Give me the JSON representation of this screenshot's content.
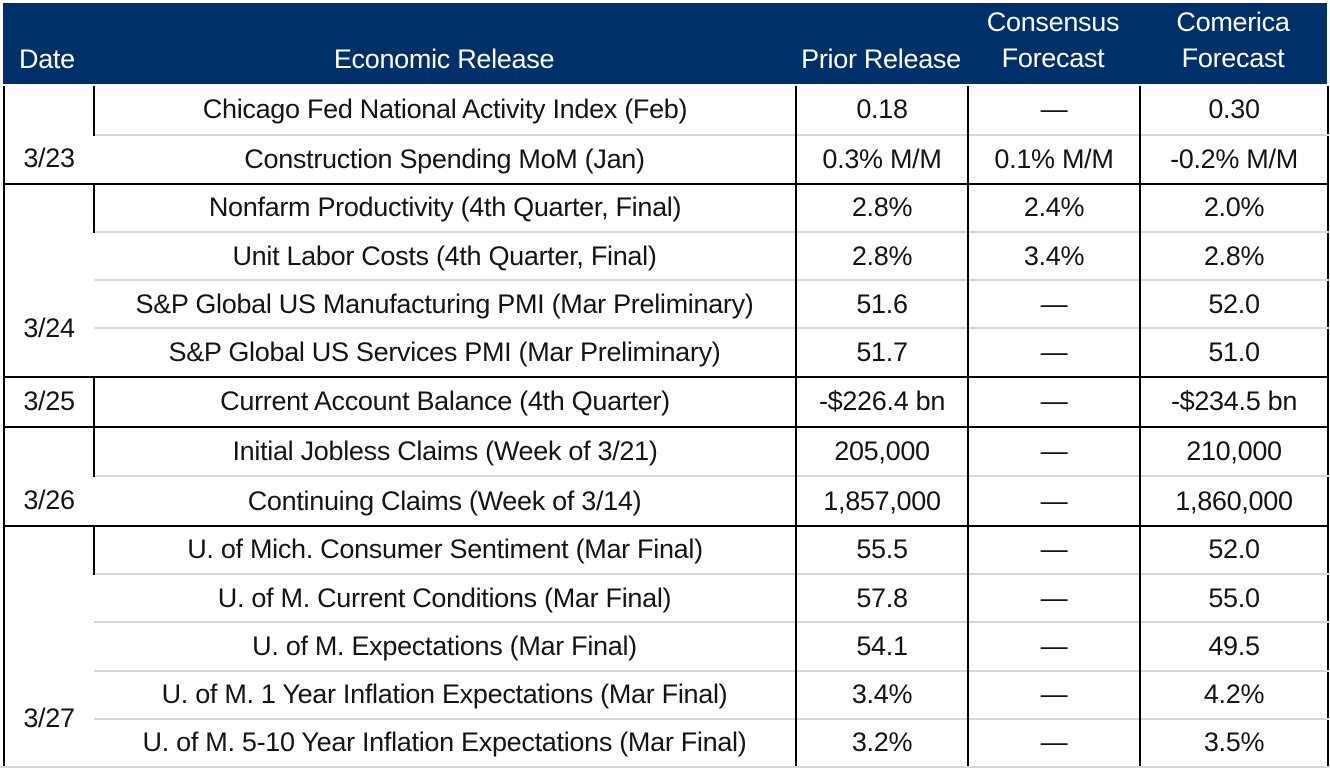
{
  "colors": {
    "header_bg": "#00306a",
    "header_text": "#ffffff",
    "grid_dark": "#000000",
    "row_divider": "#d8d8d8",
    "body_text": "#141414",
    "background": "#ffffff"
  },
  "table": {
    "header": {
      "date": "Date",
      "release": "Economic Release",
      "prior": "Prior Release",
      "consensus": [
        "Consensus",
        "Forecast"
      ],
      "comerica": [
        "Comerica",
        "Forecast"
      ]
    }
  },
  "chart_data": {
    "type": "table",
    "columns": [
      "Date",
      "Economic Release",
      "Prior Release",
      "Consensus Forecast",
      "Comerica Forecast"
    ],
    "missing_value_symbol": "—",
    "groups": [
      {
        "date": "3/23",
        "rows": [
          [
            "Chicago Fed National Activity Index (Feb)",
            "0.18",
            "—",
            "0.30"
          ],
          [
            "Construction Spending MoM (Jan)",
            "0.3% M/M",
            "0.1% M/M",
            "-0.2% M/M"
          ]
        ]
      },
      {
        "date": "3/24",
        "rows": [
          [
            "Nonfarm Productivity (4th Quarter, Final)",
            "2.8%",
            "2.4%",
            "2.0%"
          ],
          [
            "Unit Labor Costs (4th Quarter, Final)",
            "2.8%",
            "3.4%",
            "2.8%"
          ],
          [
            "S&P Global US Manufacturing PMI (Mar Preliminary)",
            "51.6",
            "—",
            "52.0"
          ],
          [
            "S&P Global US Services PMI (Mar Preliminary)",
            "51.7",
            "—",
            "51.0"
          ]
        ]
      },
      {
        "date": "3/25",
        "rows": [
          [
            "Current Account Balance (4th Quarter)",
            "-$226.4 bn",
            "—",
            "-$234.5 bn"
          ]
        ]
      },
      {
        "date": "3/26",
        "rows": [
          [
            "Initial Jobless Claims (Week of 3/21)",
            "205,000",
            "—",
            "210,000"
          ],
          [
            "Continuing Claims (Week of 3/14)",
            "1,857,000",
            "—",
            "1,860,000"
          ]
        ]
      },
      {
        "date": "3/27",
        "rows": [
          [
            "U. of Mich. Consumer Sentiment (Mar Final)",
            "55.5",
            "—",
            "52.0"
          ],
          [
            "U. of M. Current Conditions (Mar Final)",
            "57.8",
            "—",
            "55.0"
          ],
          [
            "U. of M. Expectations (Mar Final)",
            "54.1",
            "—",
            "49.5"
          ],
          [
            "U. of M. 1 Year Inflation Expectations (Mar Final)",
            "3.4%",
            "—",
            "4.2%"
          ],
          [
            "U. of M. 5-10 Year Inflation Expectations (Mar Final)",
            "3.2%",
            "—",
            "3.5%"
          ]
        ]
      }
    ]
  }
}
